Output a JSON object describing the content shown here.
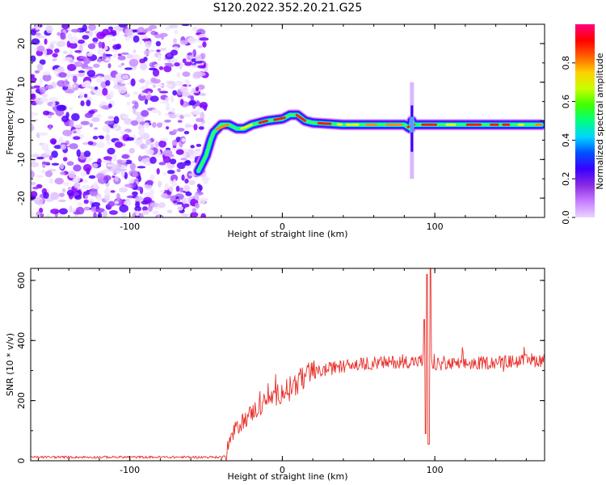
{
  "chart_data": [
    {
      "type": "heatmap",
      "title": "S120.2022.352.20.21.G25",
      "xlabel": "Height of straight line (km)",
      "ylabel": "Frequency (Hz)",
      "xlim": [
        -165,
        172
      ],
      "ylim": [
        -25,
        25
      ],
      "xticks": [
        -100,
        0,
        100
      ],
      "xtick_labels": [
        "-100",
        "0",
        "100"
      ],
      "yticks": [
        -20,
        -10,
        0,
        10,
        20
      ],
      "ytick_labels": [
        "-20",
        "-10",
        "0",
        "10",
        "20"
      ],
      "colorbar": {
        "label": "Normalized spectral amplitude",
        "range": [
          0,
          1
        ],
        "ticks": [
          0,
          0.2,
          0.4,
          0.6,
          0.8
        ],
        "tick_labels": [
          "0.0",
          "0.2",
          "0.4",
          "0.6",
          "0.8"
        ],
        "colormap": [
          "#e8d4ff",
          "#c77dff",
          "#8a2be2",
          "#3a00ff",
          "#0050ff",
          "#00d5ff",
          "#00ff80",
          "#40ff00",
          "#c8ff00",
          "#ffd000",
          "#ff6000",
          "#ff0000",
          "#ff0080"
        ]
      },
      "noise_region": {
        "x_range": [
          -165,
          -50
        ],
        "y_range": [
          -25,
          25
        ]
      },
      "ridge": {
        "x": [
          -55,
          -50,
          -47,
          -45,
          -40,
          -35,
          -30,
          -25,
          -20,
          -10,
          0,
          5,
          10,
          15,
          20,
          40,
          60,
          80,
          84,
          85,
          86,
          90,
          100,
          120,
          140,
          160,
          170
        ],
        "y": [
          -13,
          -9,
          -5,
          -3,
          -1,
          -1,
          -2,
          -2,
          -1,
          0,
          0.5,
          1.5,
          1.5,
          0,
          -0.5,
          -1,
          -1,
          -1,
          -2,
          0,
          -1,
          -1,
          -1,
          -1,
          -1,
          -1,
          -1
        ]
      },
      "spike": {
        "x": 85,
        "y_range": [
          -15,
          10
        ]
      }
    },
    {
      "type": "line",
      "title": "",
      "xlabel": "Height of straight line (km)",
      "ylabel": "SNR (10 * v/v)",
      "xlim": [
        -165,
        172
      ],
      "ylim": [
        0,
        640
      ],
      "xticks": [
        -100,
        0,
        100
      ],
      "xtick_labels": [
        "-100",
        "0",
        "100"
      ],
      "yticks": [
        0,
        200,
        400,
        600
      ],
      "ytick_labels": [
        "0",
        "200",
        "400",
        "600"
      ],
      "color": "#e8302a",
      "trend": {
        "x": [
          -165,
          -90,
          -40,
          -37,
          -35,
          -30,
          -20,
          -10,
          0,
          10,
          20,
          30,
          40,
          60,
          80,
          90,
          93,
          95,
          97,
          100,
          120,
          140,
          160,
          172
        ],
        "y": [
          12,
          12,
          12,
          15,
          60,
          110,
          160,
          200,
          230,
          260,
          290,
          305,
          315,
          325,
          330,
          330,
          340,
          400,
          330,
          320,
          322,
          328,
          332,
          335
        ]
      },
      "spikes": [
        {
          "x": 93,
          "y": 470
        },
        {
          "x": 94,
          "y": 90
        },
        {
          "x": 95,
          "y": 620
        },
        {
          "x": 96,
          "y": 55
        },
        {
          "x": 97,
          "y": 640
        }
      ]
    }
  ]
}
